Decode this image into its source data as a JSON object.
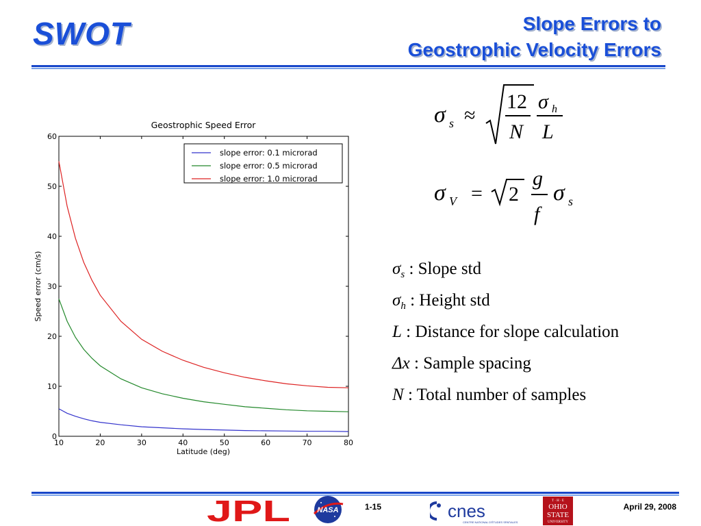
{
  "header": {
    "logo_text": "SWOT",
    "title_line1": "Slope Errors to",
    "title_line2": "Geostrophic Velocity Errors"
  },
  "chart_data": {
    "type": "line",
    "title": "Geostrophic Speed Error",
    "xlabel": "Latitude (deg)",
    "ylabel": "Speed error (cm/s)",
    "xlim": [
      10,
      80
    ],
    "ylim": [
      0,
      60
    ],
    "x_ticks": [
      10,
      20,
      30,
      40,
      50,
      60,
      70,
      80
    ],
    "y_ticks": [
      0,
      10,
      20,
      30,
      40,
      50,
      60
    ],
    "grid": false,
    "legend_position": "top-right",
    "x": [
      10,
      12,
      14,
      16,
      18,
      20,
      25,
      30,
      35,
      40,
      45,
      50,
      55,
      60,
      65,
      70,
      75,
      80
    ],
    "series": [
      {
        "name": "slope error: 0.1 microrad",
        "color": "#3333cc",
        "values": [
          5.5,
          4.6,
          4.0,
          3.5,
          3.1,
          2.8,
          2.3,
          1.9,
          1.7,
          1.5,
          1.35,
          1.25,
          1.15,
          1.1,
          1.05,
          1.0,
          1.0,
          0.95
        ]
      },
      {
        "name": "slope error: 0.5 microrad",
        "color": "#22882a",
        "values": [
          27.5,
          23.0,
          19.8,
          17.4,
          15.6,
          14.1,
          11.5,
          9.7,
          8.5,
          7.6,
          6.9,
          6.4,
          5.9,
          5.6,
          5.3,
          5.1,
          5.0,
          4.9
        ]
      },
      {
        "name": "slope error: 1.0 microrad",
        "color": "#dd2222",
        "values": [
          55.0,
          46.0,
          39.6,
          34.8,
          31.2,
          28.2,
          23.0,
          19.4,
          17.0,
          15.2,
          13.8,
          12.7,
          11.8,
          11.1,
          10.5,
          10.1,
          9.8,
          9.7
        ]
      }
    ]
  },
  "formulas": {
    "f1": {
      "sigma": "σ",
      "sub_s": "s",
      "approx": "≈",
      "num": "12",
      "den": "N",
      "sub_h": "h",
      "L": "L"
    },
    "f2": {
      "sigma": "σ",
      "sub_V": "V",
      "eq": "=",
      "two": "2",
      "g": "g",
      "f": "f",
      "sub_s": "s"
    }
  },
  "definitions": [
    {
      "symbol": "σ",
      "sub": "s",
      "text": ":  Slope std"
    },
    {
      "symbol": "σ",
      "sub": "h",
      "text": " :  Height std"
    },
    {
      "symbol": "L",
      "sub": "",
      "text": " :  Distance for slope calculation"
    },
    {
      "symbol": "Δx",
      "sub": "",
      "text": " :  Sample spacing"
    },
    {
      "symbol": "N",
      "sub": "",
      "text": " :  Total number of samples"
    }
  ],
  "footer": {
    "page_number": "1-15",
    "date": "April 29, 2008",
    "logos": {
      "jpl": "JPL",
      "nasa": "NASA",
      "cnes": "cnes",
      "cnes_tagline": "CENTRE NATIONAL D'ÉTUDES SPATIALES",
      "osu_the": "T · H · E",
      "osu_line1": "OHIO",
      "osu_line2": "STATE",
      "osu_line3": "UNIVERSITY"
    }
  }
}
